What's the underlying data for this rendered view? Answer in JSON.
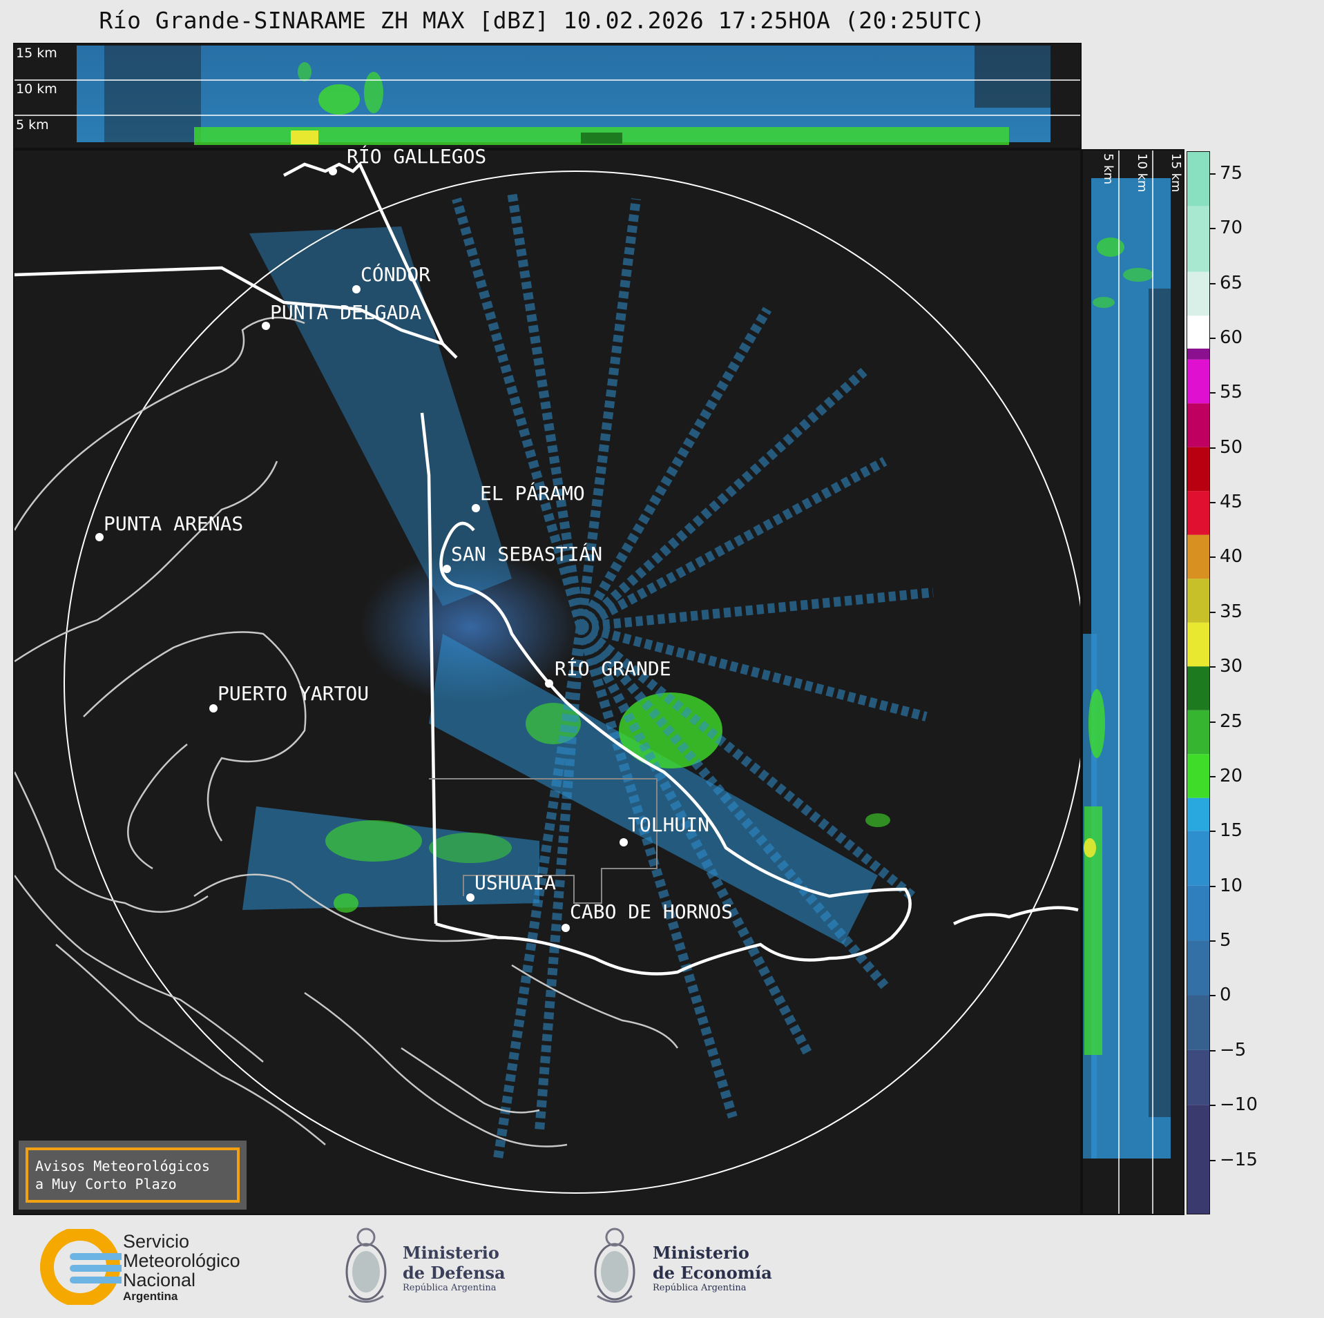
{
  "title": "Río Grande-SINARAME ZH MAX [dBZ] 10.02.2026 17:25HOA (20:25UTC)",
  "top_panel": {
    "height_labels": [
      "15 km",
      "10 km",
      "5 km"
    ]
  },
  "side_panel": {
    "height_labels": [
      "5 km",
      "10 km",
      "15 km"
    ]
  },
  "map": {
    "cities": [
      {
        "name": "RÍO GALLEGOS"
      },
      {
        "name": "CÓNDOR"
      },
      {
        "name": "PUNTA DELGADA"
      },
      {
        "name": "PUNTA ARENAS"
      },
      {
        "name": "EL PÁRAMO"
      },
      {
        "name": "SAN SEBASTIÁN"
      },
      {
        "name": "RÍO GRANDE"
      },
      {
        "name": "PUERTO YARTOU"
      },
      {
        "name": "TOLHUIN"
      },
      {
        "name": "USHUAIA"
      },
      {
        "name": "CABO DE HORNOS"
      }
    ]
  },
  "colorbar": {
    "unit": "dBZ",
    "ticks": [
      "75",
      "70",
      "65",
      "60",
      "55",
      "50",
      "45",
      "40",
      "35",
      "30",
      "25",
      "20",
      "15",
      "10",
      "5",
      "0",
      "−5",
      "−10",
      "−15"
    ],
    "colors": {
      "low": "#3a3a6e",
      "blue": "#2e8fcf",
      "cyan": "#29a8df",
      "green": "#3fdc2a",
      "darkgreen": "#1e7a1e",
      "yellow": "#e8e830",
      "orange": "#e07a10",
      "red": "#e01030",
      "darkred": "#8a0000",
      "magenta": "#e010d0",
      "purple": "#8a1090",
      "white": "#ffffff",
      "mint": "#88e0c0"
    }
  },
  "notice": {
    "line1": "Avisos Meteorológicos",
    "line2": "a Muy Corto Plazo"
  },
  "footer": {
    "smn": {
      "line1": "Servicio",
      "line2": "Meteorológico",
      "line3": "Nacional",
      "line4": "Argentina"
    },
    "defensa": {
      "line1": "Ministerio",
      "line2": "de Defensa",
      "line3": "República Argentina"
    },
    "economia": {
      "line1": "Ministerio",
      "line2": "de Economía",
      "line3": "República Argentina"
    }
  }
}
